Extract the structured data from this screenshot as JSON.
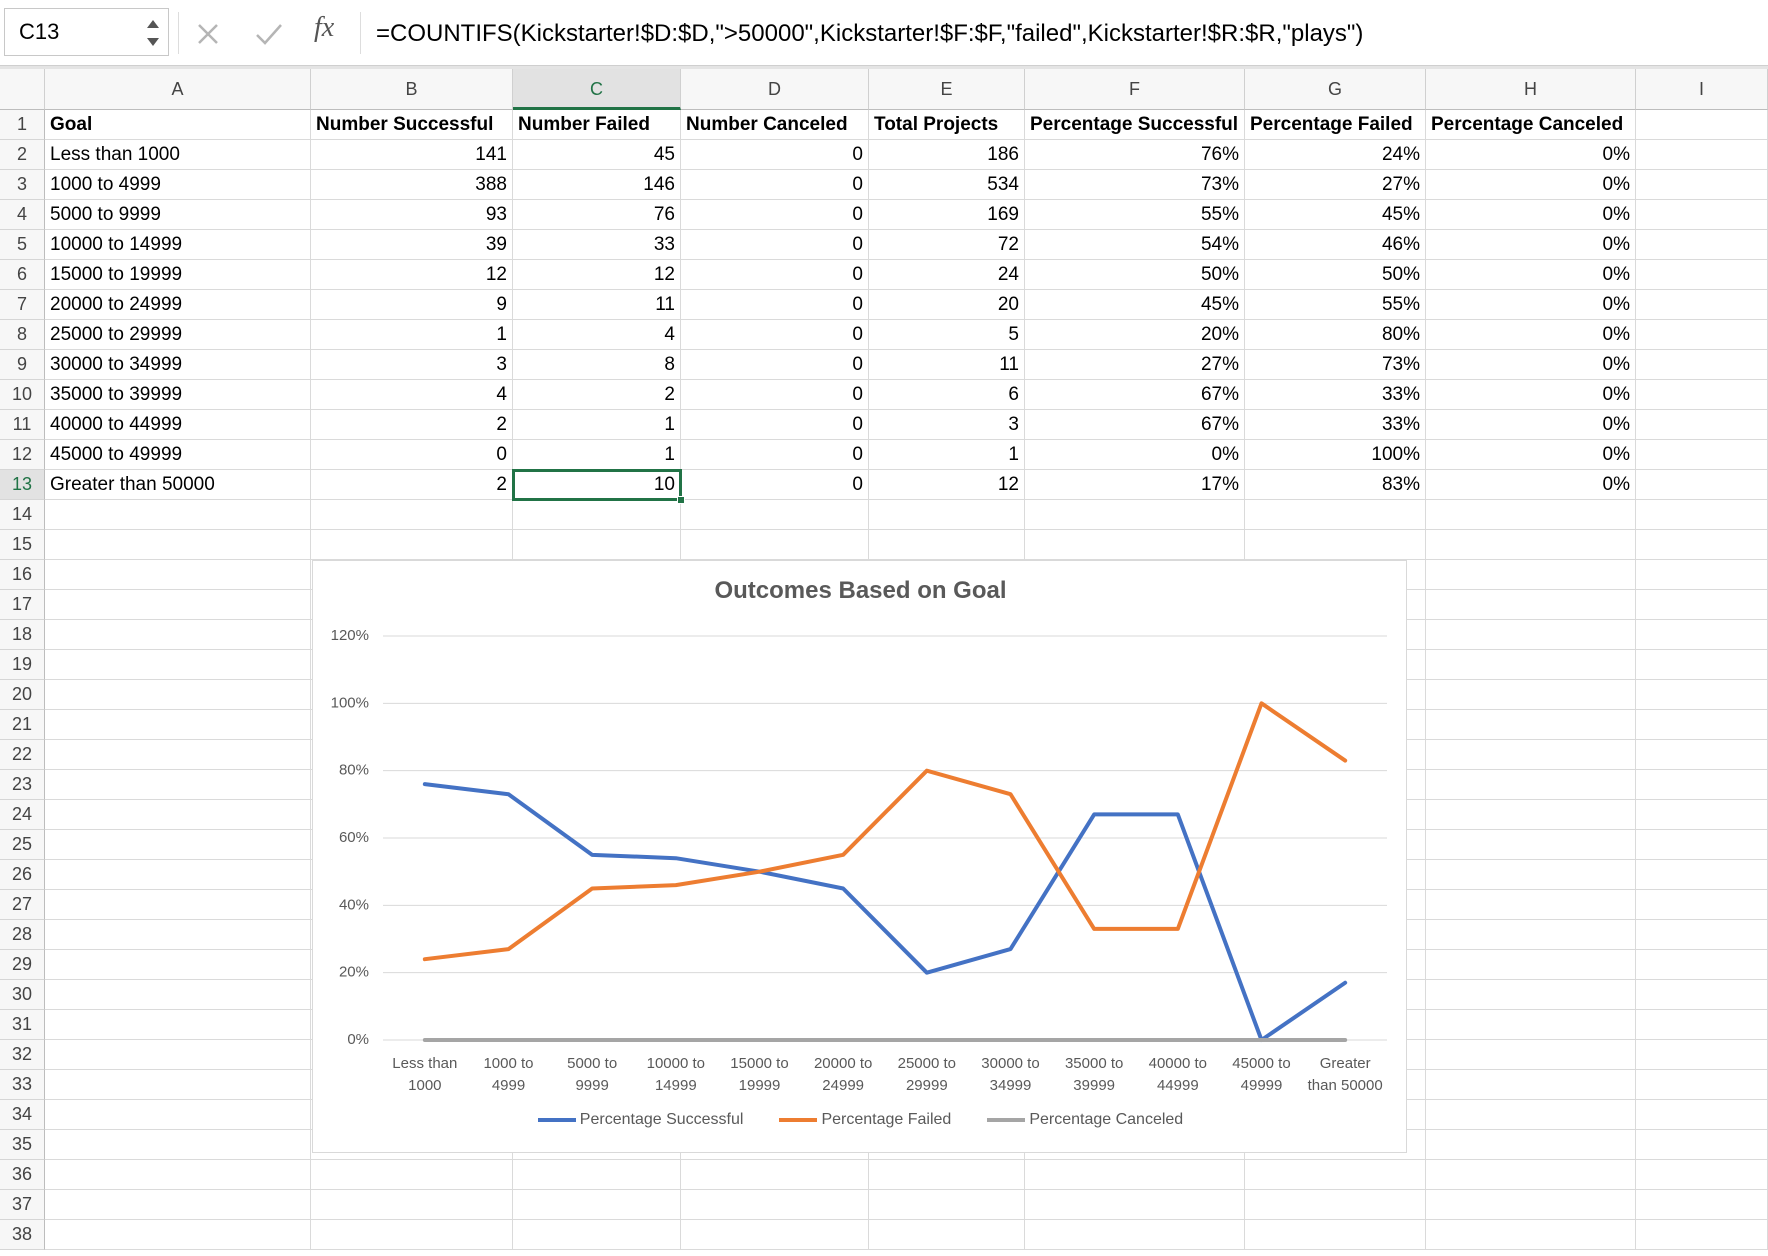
{
  "formula_bar": {
    "name_box": "C13",
    "function_label": "fx",
    "formula": "=COUNTIFS(Kickstarter!$D:$D,\">50000\",Kickstarter!$F:$F,\"failed\",Kickstarter!$R:$R,\"plays\")"
  },
  "columns": [
    "A",
    "B",
    "C",
    "D",
    "E",
    "F",
    "G",
    "H",
    "I"
  ],
  "row_numbers": [
    1,
    2,
    3,
    4,
    5,
    6,
    7,
    8,
    9,
    10,
    11,
    12,
    13,
    14,
    15,
    16,
    17,
    18,
    19,
    20,
    21,
    22,
    23,
    24,
    25,
    26,
    27,
    28,
    29,
    30,
    31,
    32,
    33,
    34,
    35,
    36,
    37,
    38
  ],
  "table": {
    "rows": [
      [
        "Goal",
        "Number Successful",
        "Number Failed",
        "Number Canceled",
        "Total Projects",
        "Percentage Successful",
        "Percentage Failed",
        "Percentage Canceled"
      ],
      [
        "Less than 1000",
        "141",
        "45",
        "0",
        "186",
        "76%",
        "24%",
        "0%"
      ],
      [
        "1000 to 4999",
        "388",
        "146",
        "0",
        "534",
        "73%",
        "27%",
        "0%"
      ],
      [
        "5000 to 9999",
        "93",
        "76",
        "0",
        "169",
        "55%",
        "45%",
        "0%"
      ],
      [
        "10000 to 14999",
        "39",
        "33",
        "0",
        "72",
        "54%",
        "46%",
        "0%"
      ],
      [
        "15000 to 19999",
        "12",
        "12",
        "0",
        "24",
        "50%",
        "50%",
        "0%"
      ],
      [
        "20000 to 24999",
        "9",
        "11",
        "0",
        "20",
        "45%",
        "55%",
        "0%"
      ],
      [
        "25000 to 29999",
        "1",
        "4",
        "0",
        "5",
        "20%",
        "80%",
        "0%"
      ],
      [
        "30000 to 34999",
        "3",
        "8",
        "0",
        "11",
        "27%",
        "73%",
        "0%"
      ],
      [
        "35000 to 39999",
        "4",
        "2",
        "0",
        "6",
        "67%",
        "33%",
        "0%"
      ],
      [
        "40000 to 44999",
        "2",
        "1",
        "0",
        "3",
        "67%",
        "33%",
        "0%"
      ],
      [
        "45000 to 49999",
        "0",
        "1",
        "0",
        "1",
        "0%",
        "100%",
        "0%"
      ],
      [
        "Greater than 50000",
        "2",
        "10",
        "0",
        "12",
        "17%",
        "83%",
        "0%"
      ]
    ]
  },
  "chart_data": {
    "type": "line",
    "title": "Outcomes Based on Goal",
    "categories": [
      "Less than 1000",
      "1000 to 4999",
      "5000 to 9999",
      "10000 to 14999",
      "15000 to 19999",
      "20000 to 24999",
      "25000 to 29999",
      "30000 to 34999",
      "35000 to 39999",
      "40000 to 44999",
      "45000 to 49999",
      "Greater than 50000"
    ],
    "series": [
      {
        "name": "Percentage Successful",
        "color": "#4472c4",
        "values": [
          76,
          73,
          55,
          54,
          50,
          45,
          20,
          27,
          67,
          67,
          0,
          17
        ]
      },
      {
        "name": "Percentage Failed",
        "color": "#ed7d31",
        "values": [
          24,
          27,
          45,
          46,
          50,
          55,
          80,
          73,
          33,
          33,
          100,
          83
        ]
      },
      {
        "name": "Percentage Canceled",
        "color": "#a5a5a5",
        "values": [
          0,
          0,
          0,
          0,
          0,
          0,
          0,
          0,
          0,
          0,
          0,
          0
        ]
      }
    ],
    "ylim": [
      0,
      120
    ],
    "yticks": [
      {
        "value": 0,
        "label": "0%"
      },
      {
        "value": 20,
        "label": "20%"
      },
      {
        "value": 40,
        "label": "40%"
      },
      {
        "value": 60,
        "label": "60%"
      },
      {
        "value": 80,
        "label": "80%"
      },
      {
        "value": 100,
        "label": "100%"
      },
      {
        "value": 120,
        "label": "120%"
      }
    ],
    "grid": true,
    "legend": "bottom"
  }
}
